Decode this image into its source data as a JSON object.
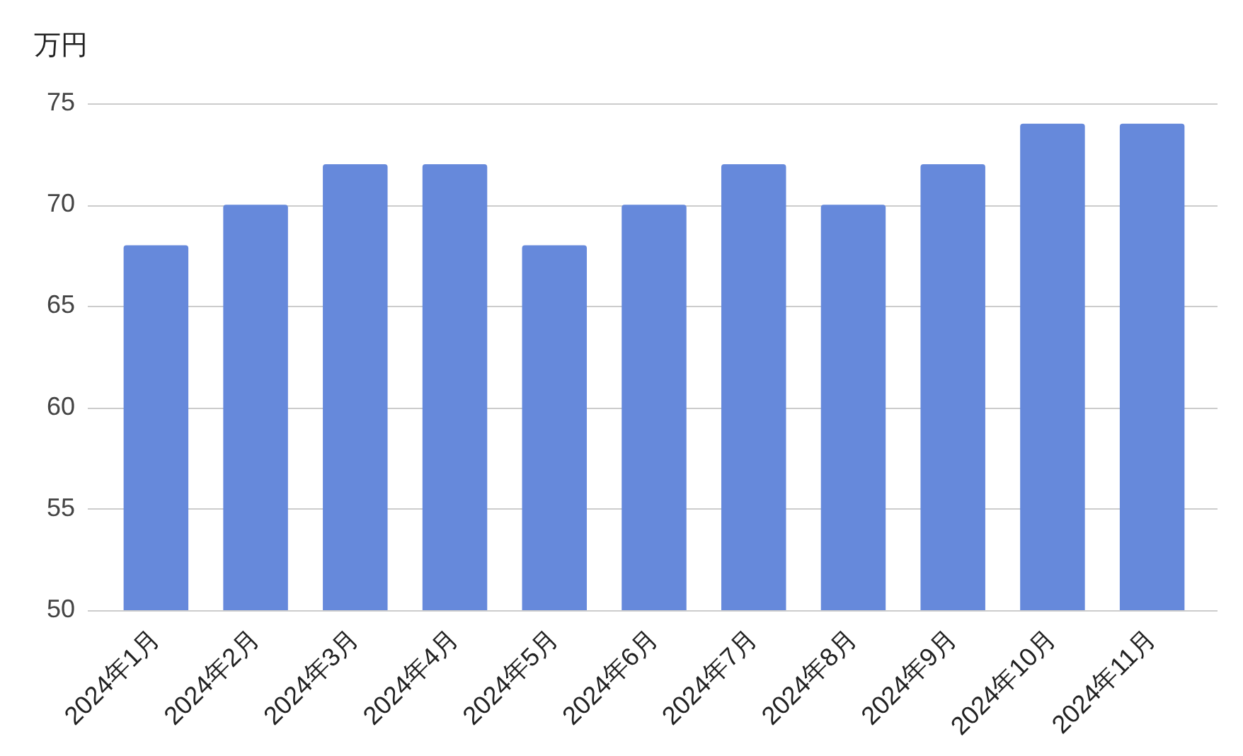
{
  "chart_data": {
    "type": "bar",
    "ylabel": "万円",
    "categories": [
      "2024年1月",
      "2024年2月",
      "2024年3月",
      "2024年4月",
      "2024年5月",
      "2024年6月",
      "2024年7月",
      "2024年8月",
      "2024年9月",
      "2024年10月",
      "2024年11月"
    ],
    "values": [
      68,
      70,
      72,
      72,
      68,
      70,
      72,
      70,
      72,
      74,
      74
    ],
    "color": "#6689db",
    "ylim": [
      50,
      75
    ],
    "yticks": [
      50,
      55,
      60,
      65,
      70,
      75
    ],
    "grid": "y"
  }
}
